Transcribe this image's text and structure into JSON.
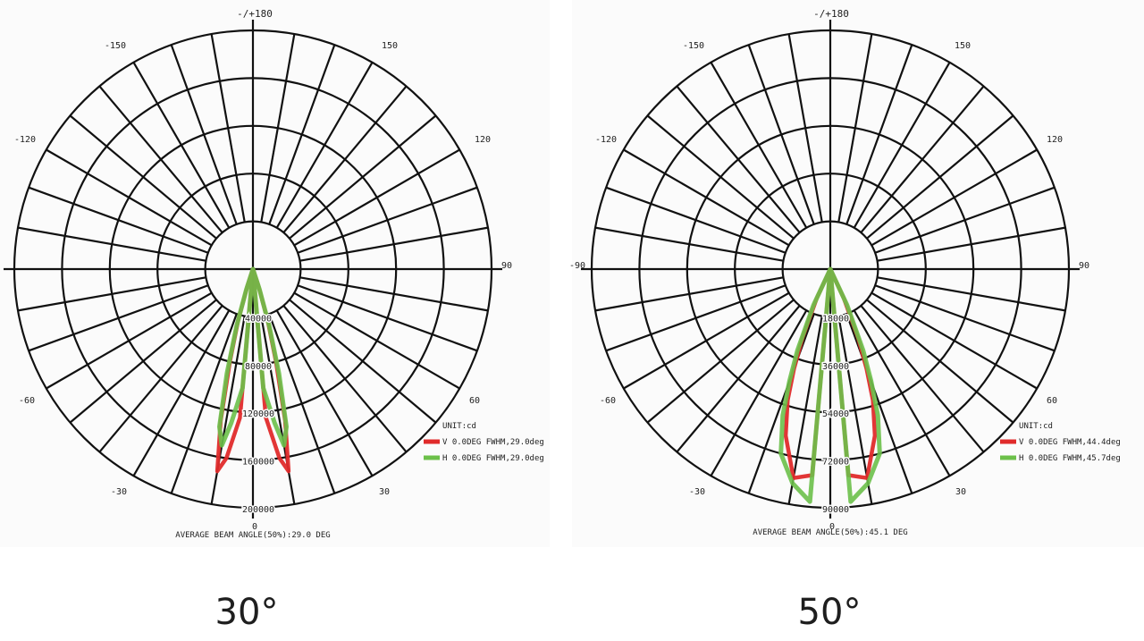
{
  "chart_data": [
    {
      "type": "polar",
      "top_label": "-/+180",
      "angle_labels": [
        "-150",
        "150",
        "-120",
        "120",
        "90",
        "-60",
        "60",
        "-30",
        "30",
        "0"
      ],
      "left_angle_label": "",
      "ring_labels": [
        "40000",
        "80000",
        "120000",
        "160000",
        "200000"
      ],
      "ring_max": 200000,
      "legend_title": "UNIT:cd",
      "series": [
        {
          "name": "V 0.0DEG FWHM,29.0deg",
          "color": "#e02b2b",
          "points": [
            [
              0,
              0
            ],
            [
              5,
              125000
            ],
            [
              8,
              160000
            ],
            [
              10,
              172000
            ],
            [
              12,
              130000
            ],
            [
              14,
              80000
            ],
            [
              16,
              45000
            ],
            [
              18,
              15000
            ],
            [
              20,
              0
            ]
          ]
        },
        {
          "name": "H 0.0DEG FWHM,29.0deg",
          "color": "#6cc04a",
          "points": [
            [
              0,
              0
            ],
            [
              5,
              100000
            ],
            [
              8,
              130000
            ],
            [
              10,
              150000
            ],
            [
              12,
              135000
            ],
            [
              14,
              90000
            ],
            [
              16,
              50000
            ],
            [
              18,
              18000
            ],
            [
              20,
              0
            ]
          ]
        }
      ],
      "footer": "AVERAGE BEAM ANGLE(50%):29.0 DEG",
      "caption": "30°"
    },
    {
      "type": "polar",
      "top_label": "-/+180",
      "angle_labels": [
        "-150",
        "150",
        "-120",
        "120",
        "90",
        "-60",
        "60",
        "-30",
        "30",
        "0"
      ],
      "left_angle_label": "-90",
      "ring_labels": [
        "18000",
        "36000",
        "54000",
        "72000",
        "90000"
      ],
      "ring_max": 90000,
      "legend_title": "UNIT:cd",
      "series": [
        {
          "name": "V 0.0DEG FWHM,44.4deg",
          "color": "#e02b2b",
          "points": [
            [
              0,
              0
            ],
            [
              5,
              78000
            ],
            [
              10,
              80000
            ],
            [
              15,
              65000
            ],
            [
              18,
              52000
            ],
            [
              20,
              40000
            ],
            [
              22,
              28000
            ],
            [
              25,
              12000
            ],
            [
              27,
              0
            ]
          ]
        },
        {
          "name": "H 0.0DEG FWHM,45.7deg",
          "color": "#6cc04a",
          "points": [
            [
              0,
              0
            ],
            [
              5,
              88000
            ],
            [
              10,
              82000
            ],
            [
              15,
              72000
            ],
            [
              18,
              58000
            ],
            [
              20,
              45000
            ],
            [
              22,
              33000
            ],
            [
              25,
              15000
            ],
            [
              28,
              0
            ]
          ]
        }
      ],
      "footer": "AVERAGE BEAM ANGLE(50%):45.1 DEG",
      "caption": "50°"
    }
  ]
}
